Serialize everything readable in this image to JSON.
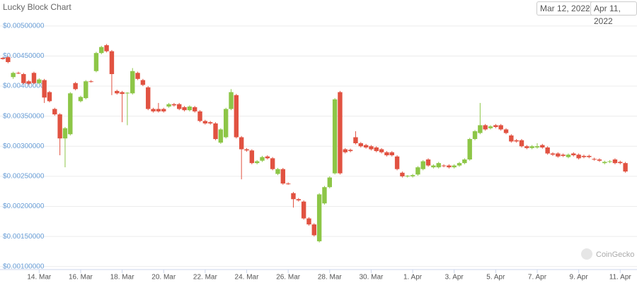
{
  "chart_data": {
    "type": "candlestick",
    "title": "Lucky Block Chart",
    "range_start": "Mar 12, 2022",
    "range_arrow": "→",
    "range_end": "Apr 11, 2022",
    "watermark": "CoinGecko",
    "up_color": "#8dc647",
    "down_color": "#e15241",
    "grid": true,
    "ylim": [
      0.00095,
      0.00508
    ],
    "yticks": [
      {
        "value": 0.001,
        "label": "$0.00100000"
      },
      {
        "value": 0.0015,
        "label": "$0.00150000"
      },
      {
        "value": 0.002,
        "label": "$0.00200000"
      },
      {
        "value": 0.0025,
        "label": "$0.00250000"
      },
      {
        "value": 0.003,
        "label": "$0.00300000"
      },
      {
        "value": 0.0035,
        "label": "$0.00350000"
      },
      {
        "value": 0.004,
        "label": "$0.00400000"
      },
      {
        "value": 0.0045,
        "label": "$0.00450000"
      },
      {
        "value": 0.005,
        "label": "$0.00500000"
      }
    ],
    "categories": [
      null,
      null,
      null,
      null,
      null,
      null,
      null,
      "14. Mar",
      null,
      null,
      null,
      null,
      null,
      null,
      null,
      "16. Mar",
      null,
      null,
      null,
      null,
      null,
      null,
      null,
      "18. Mar",
      null,
      null,
      null,
      null,
      null,
      null,
      null,
      "20. Mar",
      null,
      null,
      null,
      null,
      null,
      null,
      null,
      "22. Mar",
      null,
      null,
      null,
      null,
      null,
      null,
      null,
      "24. Mar",
      null,
      null,
      null,
      null,
      null,
      null,
      null,
      "26. Mar",
      null,
      null,
      null,
      null,
      null,
      null,
      null,
      "28. Mar",
      null,
      null,
      null,
      null,
      null,
      null,
      null,
      "30. Mar",
      null,
      null,
      null,
      null,
      null,
      null,
      null,
      "1. Apr",
      null,
      null,
      null,
      null,
      null,
      null,
      null,
      "3. Apr",
      null,
      null,
      null,
      null,
      null,
      null,
      null,
      "5. Apr",
      null,
      null,
      null,
      null,
      null,
      null,
      null,
      "7. Apr",
      null,
      null,
      null,
      null,
      null,
      null,
      null,
      "9. Apr",
      null,
      null,
      null,
      null,
      null,
      null,
      null,
      "11. Apr",
      null
    ],
    "ohlc": [
      [
        0.00447,
        0.00448,
        0.00444,
        0.00445
      ],
      [
        0.00448,
        0.0045,
        0.00438,
        0.0044
      ],
      [
        0.00415,
        0.00424,
        0.00412,
        0.00422
      ],
      [
        0.00422,
        0.00424,
        0.0042,
        0.00421
      ],
      [
        0.0042,
        0.00422,
        0.00403,
        0.00405
      ],
      [
        0.00408,
        0.0041,
        0.00402,
        0.00404
      ],
      [
        0.00422,
        0.00424,
        0.00403,
        0.00405
      ],
      [
        0.00405,
        0.00413,
        0.00403,
        0.00411
      ],
      [
        0.0041,
        0.00412,
        0.00372,
        0.00381
      ],
      [
        0.0039,
        0.00392,
        0.00373,
        0.00375
      ],
      [
        0.00362,
        0.00364,
        0.00351,
        0.00353
      ],
      [
        0.00353,
        0.00355,
        0.00285,
        0.00313
      ],
      [
        0.00313,
        0.00332,
        0.00265,
        0.0033
      ],
      [
        0.0032,
        0.0039,
        0.00318,
        0.00388
      ],
      [
        0.00405,
        0.00407,
        0.00393,
        0.00395
      ],
      [
        0.00375,
        0.00384,
        0.00373,
        0.00382
      ],
      [
        0.0038,
        0.0041,
        0.00378,
        0.00408
      ],
      [
        0.00408,
        0.0041,
        0.00406,
        0.00407
      ],
      [
        0.00425,
        0.00457,
        0.00423,
        0.00455
      ],
      [
        0.00455,
        0.00467,
        0.00453,
        0.00465
      ],
      [
        0.00468,
        0.0047,
        0.00456,
        0.00458
      ],
      [
        0.00458,
        0.0046,
        0.00385,
        0.0042
      ],
      [
        0.00392,
        0.00394,
        0.00386,
        0.00388
      ],
      [
        0.0039,
        0.00392,
        0.0034,
        0.00387
      ],
      [
        0.00388,
        0.0039,
        0.00335,
        0.00389
      ],
      [
        0.00388,
        0.0043,
        0.00386,
        0.00425
      ],
      [
        0.00422,
        0.00424,
        0.0041,
        0.00412
      ],
      [
        0.0041,
        0.00412,
        0.004,
        0.00402
      ],
      [
        0.00398,
        0.004,
        0.0036,
        0.00362
      ],
      [
        0.00362,
        0.00364,
        0.00356,
        0.00358
      ],
      [
        0.00362,
        0.00372,
        0.00356,
        0.00358
      ],
      [
        0.00362,
        0.00364,
        0.00356,
        0.00358
      ],
      [
        0.00366,
        0.00372,
        0.00364,
        0.0037
      ],
      [
        0.0037,
        0.00372,
        0.00366,
        0.00368
      ],
      [
        0.0037,
        0.00372,
        0.0036,
        0.00362
      ],
      [
        0.00365,
        0.00367,
        0.00358,
        0.0036
      ],
      [
        0.0036,
        0.00368,
        0.00358,
        0.00366
      ],
      [
        0.00365,
        0.00367,
        0.00356,
        0.00358
      ],
      [
        0.00358,
        0.0036,
        0.0034,
        0.00342
      ],
      [
        0.00342,
        0.00344,
        0.00336,
        0.00338
      ],
      [
        0.0034,
        0.00342,
        0.00336,
        0.00338
      ],
      [
        0.00338,
        0.0034,
        0.0031,
        0.00312
      ],
      [
        0.00306,
        0.0033,
        0.00304,
        0.00328
      ],
      [
        0.00315,
        0.00364,
        0.00313,
        0.00362
      ],
      [
        0.00362,
        0.00395,
        0.0036,
        0.0039
      ],
      [
        0.00385,
        0.00387,
        0.00313,
        0.00315
      ],
      [
        0.00315,
        0.00317,
        0.00245,
        0.00295
      ],
      [
        0.00295,
        0.00297,
        0.00291,
        0.00293
      ],
      [
        0.00293,
        0.00295,
        0.0027,
        0.00272
      ],
      [
        0.00272,
        0.00277,
        0.0027,
        0.00275
      ],
      [
        0.00276,
        0.00284,
        0.00274,
        0.00282
      ],
      [
        0.00283,
        0.00285,
        0.00278,
        0.0028
      ],
      [
        0.0028,
        0.00282,
        0.0026,
        0.00262
      ],
      [
        0.00254,
        0.00264,
        0.00252,
        0.00262
      ],
      [
        0.00262,
        0.00264,
        0.00236,
        0.00238
      ],
      [
        0.00238,
        0.0024,
        0.00236,
        0.00237
      ],
      [
        0.00222,
        0.00224,
        0.00198,
        0.00212
      ],
      [
        0.00212,
        0.00214,
        0.00208,
        0.0021
      ],
      [
        0.00208,
        0.0021,
        0.00178,
        0.0018
      ],
      [
        0.0018,
        0.00182,
        0.00168,
        0.0017
      ],
      [
        0.0017,
        0.00172,
        0.0015,
        0.00152
      ],
      [
        0.00142,
        0.00222,
        0.0014,
        0.0022
      ],
      [
        0.00205,
        0.00234,
        0.00203,
        0.00232
      ],
      [
        0.00232,
        0.0025,
        0.0023,
        0.00248
      ],
      [
        0.00255,
        0.0038,
        0.00253,
        0.00378
      ],
      [
        0.0039,
        0.00392,
        0.00253,
        0.00255
      ],
      [
        0.00295,
        0.00297,
        0.00288,
        0.0029
      ],
      [
        0.00294,
        0.00296,
        0.0029,
        0.00292
      ],
      [
        0.00315,
        0.00325,
        0.00303,
        0.00305
      ],
      [
        0.00305,
        0.00307,
        0.00298,
        0.003
      ],
      [
        0.00302,
        0.00304,
        0.00296,
        0.00298
      ],
      [
        0.003,
        0.00302,
        0.00293,
        0.00295
      ],
      [
        0.00298,
        0.003,
        0.0029,
        0.00292
      ],
      [
        0.00295,
        0.00297,
        0.00288,
        0.0029
      ],
      [
        0.0029,
        0.00292,
        0.00283,
        0.00285
      ],
      [
        0.0029,
        0.00292,
        0.00283,
        0.00285
      ],
      [
        0.00283,
        0.00285,
        0.0026,
        0.00262
      ],
      [
        0.00256,
        0.00258,
        0.00248,
        0.0025
      ],
      [
        0.0025,
        0.00252,
        0.00248,
        0.00251
      ],
      [
        0.0025,
        0.00254,
        0.00248,
        0.00252
      ],
      [
        0.00253,
        0.00267,
        0.00251,
        0.00265
      ],
      [
        0.00262,
        0.00277,
        0.0026,
        0.00275
      ],
      [
        0.00278,
        0.0028,
        0.00266,
        0.00268
      ],
      [
        0.00265,
        0.0027,
        0.00263,
        0.00268
      ],
      [
        0.00265,
        0.00274,
        0.00263,
        0.00272
      ],
      [
        0.00268,
        0.0027,
        0.00265,
        0.00267
      ],
      [
        0.00268,
        0.0027,
        0.00263,
        0.00265
      ],
      [
        0.00265,
        0.0027,
        0.00263,
        0.00268
      ],
      [
        0.00268,
        0.00274,
        0.00266,
        0.00272
      ],
      [
        0.00272,
        0.0028,
        0.0027,
        0.00278
      ],
      [
        0.00278,
        0.00314,
        0.00276,
        0.00312
      ],
      [
        0.00312,
        0.00327,
        0.0031,
        0.00325
      ],
      [
        0.00322,
        0.00372,
        0.0032,
        0.00335
      ],
      [
        0.00335,
        0.00337,
        0.00326,
        0.00328
      ],
      [
        0.0033,
        0.00335,
        0.00328,
        0.00333
      ],
      [
        0.00335,
        0.00337,
        0.0033,
        0.00332
      ],
      [
        0.00335,
        0.00337,
        0.00326,
        0.00328
      ],
      [
        0.00328,
        0.0033,
        0.0032,
        0.00322
      ],
      [
        0.00318,
        0.0032,
        0.00306,
        0.00308
      ],
      [
        0.0031,
        0.00312,
        0.00306,
        0.00308
      ],
      [
        0.0031,
        0.00312,
        0.00298,
        0.003
      ],
      [
        0.003,
        0.00302,
        0.00295,
        0.00297
      ],
      [
        0.00297,
        0.00302,
        0.00295,
        0.003
      ],
      [
        0.00298,
        0.00305,
        0.00296,
        0.003
      ],
      [
        0.00302,
        0.00304,
        0.00296,
        0.00298
      ],
      [
        0.00298,
        0.003,
        0.00286,
        0.00288
      ],
      [
        0.00288,
        0.0029,
        0.00284,
        0.00286
      ],
      [
        0.00288,
        0.0029,
        0.00281,
        0.00283
      ],
      [
        0.00286,
        0.00288,
        0.00282,
        0.00284
      ],
      [
        0.00282,
        0.00288,
        0.0028,
        0.00286
      ],
      [
        0.00288,
        0.0029,
        0.00283,
        0.00285
      ],
      [
        0.00286,
        0.00288,
        0.00278,
        0.0028
      ],
      [
        0.00284,
        0.00286,
        0.0028,
        0.00282
      ],
      [
        0.00284,
        0.00286,
        0.0028,
        0.00282
      ],
      [
        0.00279,
        0.00281,
        0.00276,
        0.00278
      ],
      [
        0.00278,
        0.0028,
        0.00274,
        0.00276
      ],
      [
        0.00272,
        0.00276,
        0.0027,
        0.00274
      ],
      [
        0.00274,
        0.00277,
        0.00272,
        0.00275
      ],
      [
        0.00278,
        0.0028,
        0.0027,
        0.00272
      ],
      [
        0.00274,
        0.00276,
        0.0027,
        0.00272
      ],
      [
        0.00272,
        0.00274,
        0.00256,
        0.00258
      ]
    ]
  }
}
